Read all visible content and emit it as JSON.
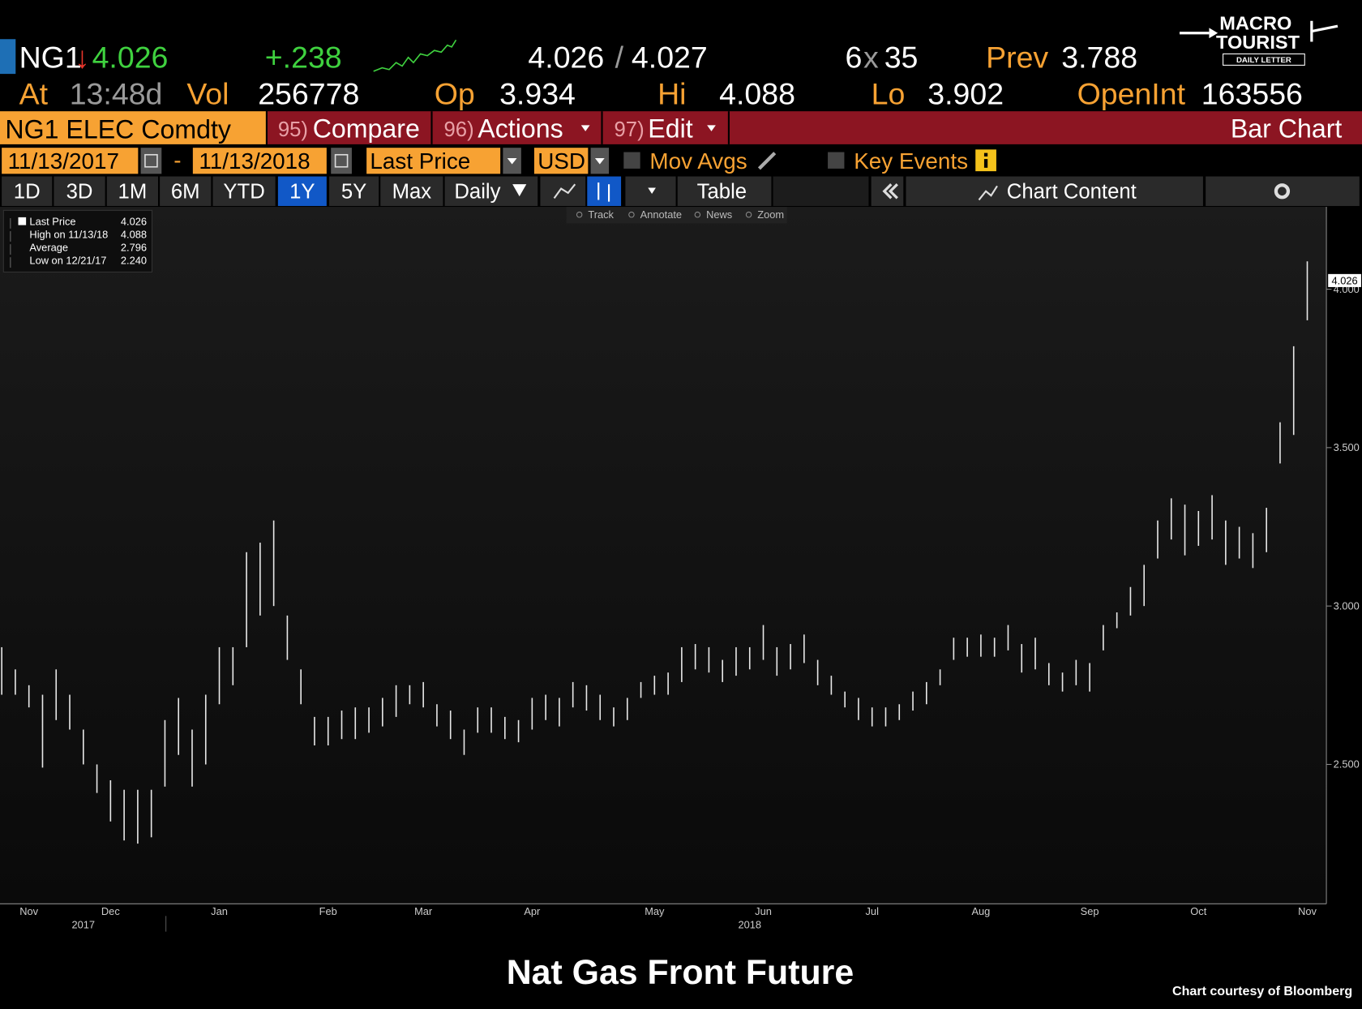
{
  "quote": {
    "ticker": "NG1",
    "arrow": "↓",
    "last": "4.026",
    "change": "+.238",
    "bid": "4.026",
    "slash": "/",
    "ask": "4.027",
    "size_bid": "6",
    "size_x": "x",
    "size_ask": "35",
    "prev_label": "Prev",
    "prev": "3.788"
  },
  "quote2": {
    "at_label": "At",
    "time": "13:48d",
    "vol_label": "Vol",
    "vol": "256778",
    "op_label": "Op",
    "op": "3.934",
    "hi_label": "Hi",
    "hi": "4.088",
    "lo_label": "Lo",
    "lo": "3.902",
    "oi_label": "OpenInt",
    "oi": "163556"
  },
  "menu": {
    "security": "NG1 ELEC Comdty",
    "compare_num": "95)",
    "compare": "Compare",
    "actions_num": "96)",
    "actions": "Actions",
    "edit_num": "97)",
    "edit": "Edit",
    "view": "Bar Chart"
  },
  "controls": {
    "start": "11/13/2017",
    "dash": "-",
    "end": "11/13/2018",
    "field": "Last Price",
    "currency": "USD",
    "mov_avgs": "Mov Avgs",
    "key_events": "Key Events"
  },
  "periods": [
    "1D",
    "3D",
    "1M",
    "6M",
    "YTD",
    "1Y",
    "5Y",
    "Max"
  ],
  "selected_period": "1Y",
  "frequency": "Daily",
  "table": "Table",
  "chart_content": "Chart Content",
  "tools": [
    "Track",
    "Annotate",
    "News",
    "Zoom"
  ],
  "legend": [
    {
      "label": "Last Price",
      "value": "4.026"
    },
    {
      "label": "High on 11/13/18",
      "value": "4.088"
    },
    {
      "label": "Average",
      "value": "2.796"
    },
    {
      "label": "Low on 12/21/17",
      "value": "2.240"
    }
  ],
  "logo": {
    "line1": "MACRO",
    "line2": "TOURIST",
    "line3": "DAILY LETTER"
  },
  "credit": "Chart courtesy of Bloomberg",
  "chart_data": {
    "type": "range_bar",
    "title": "Nat Gas Front Future",
    "color": "#e8e8e8",
    "categories": [
      null,
      null,
      "Nov",
      null,
      null,
      null,
      null,
      null,
      "Dec",
      null,
      null,
      null,
      null,
      null,
      null,
      null,
      "Jan",
      null,
      null,
      null,
      null,
      null,
      null,
      null,
      "Feb",
      null,
      null,
      null,
      null,
      null,
      null,
      "Mar",
      null,
      null,
      null,
      null,
      null,
      null,
      null,
      "Apr",
      null,
      null,
      null,
      null,
      null,
      null,
      null,
      null,
      "May",
      null,
      null,
      null,
      null,
      null,
      null,
      null,
      "Jun",
      null,
      null,
      null,
      null,
      null,
      null,
      null,
      "Jul",
      null,
      null,
      null,
      null,
      null,
      null,
      null,
      "Aug",
      null,
      null,
      null,
      null,
      null,
      null,
      null,
      "Sep",
      null,
      null,
      null,
      null,
      null,
      null,
      null,
      "Oct",
      null,
      null,
      null,
      null,
      null,
      null,
      null,
      "Nov"
    ],
    "years": [
      null,
      null,
      null,
      null,
      null,
      null,
      "2017",
      null,
      null,
      null,
      null,
      null,
      null,
      null,
      null,
      null,
      null,
      null,
      null,
      null,
      null,
      null,
      null,
      null,
      null,
      null,
      null,
      null,
      null,
      null,
      null,
      null,
      null,
      null,
      null,
      null,
      null,
      null,
      null,
      null,
      null,
      null,
      null,
      null,
      null,
      null,
      null,
      null,
      null,
      null,
      null,
      null,
      null,
      null,
      null,
      "2018",
      null,
      null,
      null,
      null,
      null,
      null,
      null,
      null,
      null,
      null,
      null,
      null,
      null,
      null,
      null,
      null,
      null,
      null,
      null,
      null,
      null,
      null,
      null,
      null,
      null,
      null,
      null,
      null,
      null,
      null,
      null,
      null,
      null,
      null,
      null,
      null,
      null,
      null,
      null,
      null,
      null
    ],
    "high": [
      2.87,
      2.8,
      2.75,
      2.72,
      2.8,
      2.72,
      2.61,
      2.5,
      2.45,
      2.42,
      2.42,
      2.42,
      2.64,
      2.71,
      2.61,
      2.72,
      2.87,
      2.87,
      3.17,
      3.2,
      3.27,
      2.97,
      2.8,
      2.65,
      2.65,
      2.67,
      2.68,
      2.68,
      2.71,
      2.75,
      2.75,
      2.76,
      2.69,
      2.67,
      2.61,
      2.68,
      2.68,
      2.65,
      2.64,
      2.71,
      2.72,
      2.71,
      2.76,
      2.75,
      2.72,
      2.68,
      2.71,
      2.76,
      2.78,
      2.79,
      2.87,
      2.88,
      2.87,
      2.83,
      2.87,
      2.87,
      2.94,
      2.87,
      2.88,
      2.91,
      2.83,
      2.78,
      2.73,
      2.71,
      2.68,
      2.68,
      2.69,
      2.73,
      2.76,
      2.8,
      2.9,
      2.9,
      2.91,
      2.9,
      2.94,
      2.88,
      2.9,
      2.82,
      2.79,
      2.83,
      2.82,
      2.94,
      2.98,
      3.06,
      3.13,
      3.27,
      3.34,
      3.32,
      3.3,
      3.35,
      3.27,
      3.25,
      3.23,
      3.31,
      3.58,
      3.82,
      4.088
    ],
    "low": [
      2.72,
      2.72,
      2.68,
      2.49,
      2.64,
      2.61,
      2.5,
      2.41,
      2.32,
      2.26,
      2.25,
      2.27,
      2.43,
      2.53,
      2.43,
      2.5,
      2.69,
      2.75,
      2.87,
      2.97,
      3.0,
      2.83,
      2.69,
      2.56,
      2.56,
      2.58,
      2.58,
      2.6,
      2.62,
      2.65,
      2.69,
      2.68,
      2.62,
      2.58,
      2.53,
      2.6,
      2.6,
      2.58,
      2.57,
      2.61,
      2.64,
      2.62,
      2.68,
      2.67,
      2.64,
      2.62,
      2.64,
      2.71,
      2.72,
      2.72,
      2.76,
      2.8,
      2.79,
      2.76,
      2.78,
      2.8,
      2.83,
      2.78,
      2.8,
      2.82,
      2.75,
      2.72,
      2.68,
      2.64,
      2.62,
      2.62,
      2.64,
      2.67,
      2.69,
      2.75,
      2.83,
      2.84,
      2.84,
      2.84,
      2.86,
      2.79,
      2.8,
      2.75,
      2.73,
      2.75,
      2.73,
      2.86,
      2.93,
      2.97,
      3.0,
      3.15,
      3.21,
      3.16,
      3.19,
      3.21,
      3.13,
      3.15,
      3.12,
      3.17,
      3.45,
      3.54,
      3.902
    ],
    "last_price": 4.026,
    "ylim": [
      2.06,
      4.26
    ],
    "yticks": [
      {
        "value": 4,
        "label": "4.000"
      },
      {
        "value": 3.5,
        "label": "3.500"
      },
      {
        "value": 3,
        "label": "3.000"
      },
      {
        "value": 2.5,
        "label": "2.500"
      }
    ]
  }
}
